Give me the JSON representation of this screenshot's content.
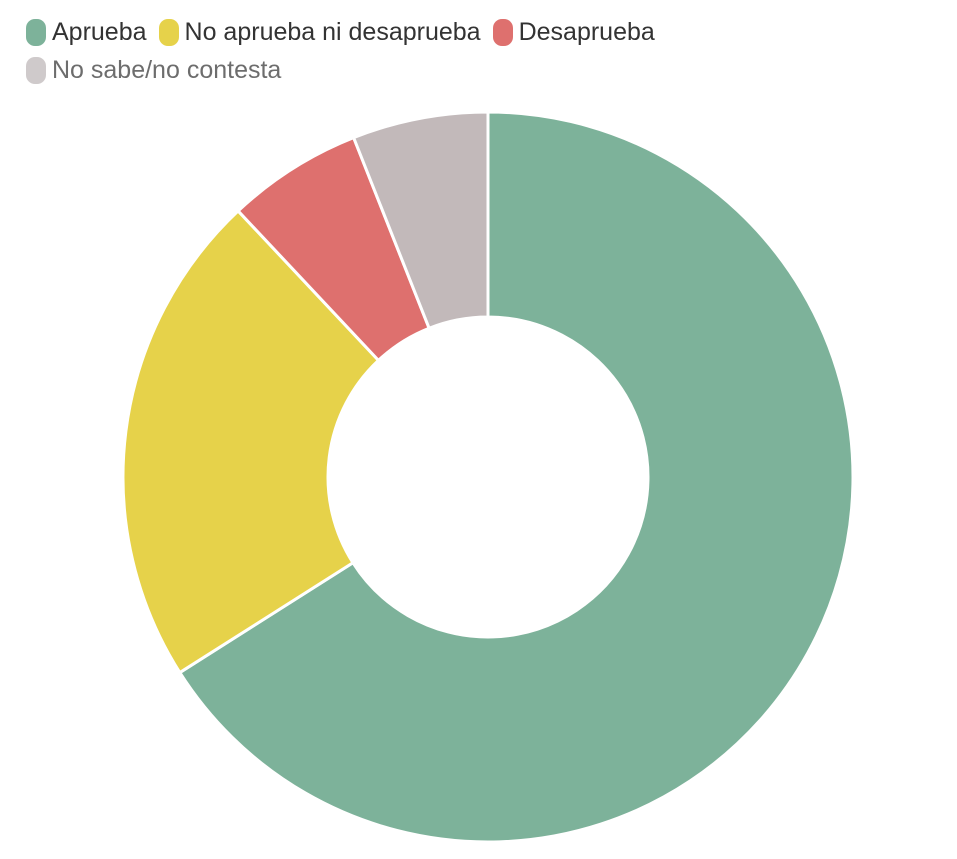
{
  "legend": {
    "items": [
      {
        "label": "Aprueba",
        "color": "#7db29a"
      },
      {
        "label": "No aprueba ni desaprueba",
        "color": "#e6d24a"
      },
      {
        "label": "Desaprueba",
        "color": "#de706e"
      },
      {
        "label": "No sabe/no contesta",
        "color": "#c2b9ba"
      }
    ]
  },
  "chart_data": {
    "type": "pie",
    "variant": "donut",
    "title": "",
    "categories": [
      "Aprueba",
      "No aprueba ni desaprueba",
      "Desaprueba",
      "No sabe/no contesta"
    ],
    "values": [
      66,
      22,
      6,
      6
    ],
    "unit": "%",
    "colors": [
      "#7db29a",
      "#e6d24a",
      "#de706e",
      "#c2b9ba"
    ],
    "start_angle": 0,
    "direction": "clockwise",
    "legend_position": "top-left",
    "inner_radius_ratio": 0.44
  }
}
